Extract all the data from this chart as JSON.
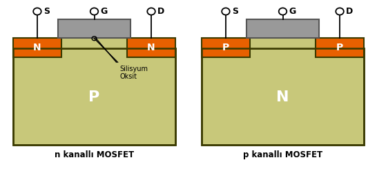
{
  "bg_color": "#ffffff",
  "substrate_color": "#c8c87a",
  "substrate_edge": "#3a3a00",
  "orange_color": "#e86000",
  "gate_color": "#999999",
  "gate_edge": "#555555",
  "label_color_white": "#ffffff",
  "label_color_black": "#000000",
  "left_label": "n kanallı MOSFET",
  "right_label": "p kanallı MOSFET",
  "left_body": "P",
  "right_body": "N",
  "left_regions": [
    "N",
    "N"
  ],
  "right_regions": [
    "P",
    "P"
  ],
  "silisyum_label": "Silisyum\nOksit"
}
